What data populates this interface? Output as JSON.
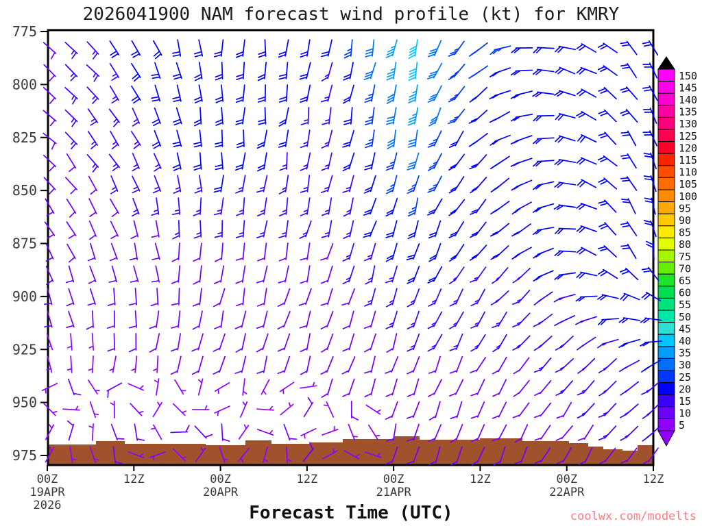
{
  "title": "2026041900 NAM forecast wind profile (kt) for KMRY",
  "watermark": {
    "text": "coolwx.com/modelts",
    "color": "#FF7D7D"
  },
  "xaxis": {
    "label": "Forecast Time (UTC)",
    "ticks": [
      {
        "time": "00Z",
        "date": "19APR",
        "year": "2026"
      },
      {
        "time": "12Z",
        "date": "",
        "year": ""
      },
      {
        "time": "00Z",
        "date": "20APR",
        "year": ""
      },
      {
        "time": "12Z",
        "date": "",
        "year": ""
      },
      {
        "time": "00Z",
        "date": "21APR",
        "year": ""
      },
      {
        "time": "12Z",
        "date": "",
        "year": ""
      },
      {
        "time": "00Z",
        "date": "22APR",
        "year": ""
      },
      {
        "time": "12Z",
        "date": "",
        "year": ""
      }
    ]
  },
  "yaxis": {
    "ticks": [
      "775",
      "800",
      "825",
      "850",
      "875",
      "900",
      "925",
      "950",
      "975"
    ]
  },
  "colorbar": {
    "values": [
      150,
      145,
      140,
      135,
      130,
      125,
      120,
      115,
      110,
      105,
      100,
      95,
      90,
      85,
      80,
      75,
      70,
      65,
      60,
      55,
      50,
      45,
      40,
      35,
      30,
      25,
      20,
      15,
      10,
      5
    ],
    "colors": [
      "#FF00FF",
      "#FF00EC",
      "#FF00CE",
      "#FF00A4",
      "#FF007A",
      "#FF0050",
      "#FF0026",
      "#FF2400",
      "#FF4E00",
      "#FF6D00",
      "#FF8C00",
      "#FFAA00",
      "#FFC900",
      "#FFE900",
      "#E2FF00",
      "#A4F600",
      "#66EE00",
      "#1EE428",
      "#00DE50",
      "#00E37C",
      "#00E8A8",
      "#2EE0D2",
      "#00C8FF",
      "#009DFF",
      "#0070FF",
      "#0038FF",
      "#0000FF",
      "#3C00FF",
      "#6D00FF",
      "#9100FF"
    ],
    "arrow_top_color": "#000000",
    "arrow_bottom_color": "#9100FF"
  },
  "terrain": {
    "color": "#A0522D",
    "profile": [
      [
        70,
        649
      ],
      [
        140,
        649
      ],
      [
        140,
        644
      ],
      [
        182,
        644
      ],
      [
        182,
        648
      ],
      [
        300,
        648
      ],
      [
        300,
        650
      ],
      [
        358,
        650
      ],
      [
        358,
        643
      ],
      [
        396,
        643
      ],
      [
        396,
        648
      ],
      [
        452,
        648
      ],
      [
        452,
        646
      ],
      [
        500,
        646
      ],
      [
        500,
        641
      ],
      [
        575,
        641
      ],
      [
        575,
        637
      ],
      [
        612,
        637
      ],
      [
        612,
        642
      ],
      [
        700,
        642
      ],
      [
        700,
        640
      ],
      [
        762,
        640
      ],
      [
        762,
        644
      ],
      [
        830,
        644
      ],
      [
        830,
        647
      ],
      [
        858,
        647
      ],
      [
        858,
        652
      ],
      [
        880,
        652
      ],
      [
        880,
        656
      ],
      [
        908,
        656
      ],
      [
        908,
        658
      ],
      [
        930,
        658
      ],
      [
        930,
        650
      ],
      [
        953,
        650
      ]
    ]
  },
  "chart_data": {
    "type": "wind_barbs",
    "units": "kt",
    "station": "KMRY",
    "n_times": 29,
    "time_step_hours": 3,
    "first_time": "00Z 19APR 2026",
    "last_time": "12Z 22APR 2026",
    "n_levels": 19,
    "pressure_top_hPa": 775,
    "pressure_bottom_hPa": 983,
    "anchor_cols": [
      0,
      3,
      8,
      13,
      17,
      19,
      22,
      28
    ],
    "anchor_rows": [
      0,
      4,
      9,
      14,
      18
    ],
    "speed_anchors_kt": [
      [
        12,
        18,
        22,
        18,
        40,
        24,
        22,
        18
      ],
      [
        12,
        15,
        22,
        15,
        32,
        22,
        20,
        20
      ],
      [
        10,
        10,
        12,
        12,
        20,
        18,
        18,
        22
      ],
      [
        6,
        7,
        8,
        8,
        12,
        12,
        12,
        18
      ],
      [
        5,
        5,
        5,
        6,
        8,
        8,
        10,
        12
      ]
    ],
    "staff_dir_anchors_deg": [
      [
        -45,
        -40,
        0,
        10,
        12,
        40,
        85,
        150
      ],
      [
        -45,
        -35,
        0,
        10,
        12,
        35,
        75,
        160
      ],
      [
        -30,
        -20,
        8,
        15,
        18,
        30,
        55,
        170
      ],
      [
        -10,
        5,
        15,
        18,
        20,
        25,
        35,
        60
      ],
      [
        20,
        15,
        10,
        12,
        15,
        18,
        25,
        40
      ]
    ],
    "notes": "Light (5 kt) variable-direction barbs in boundary layer below 950 hPa on left half; 40-45 kt cyan maximum near 775 hPa around 03-09Z 21APR"
  }
}
